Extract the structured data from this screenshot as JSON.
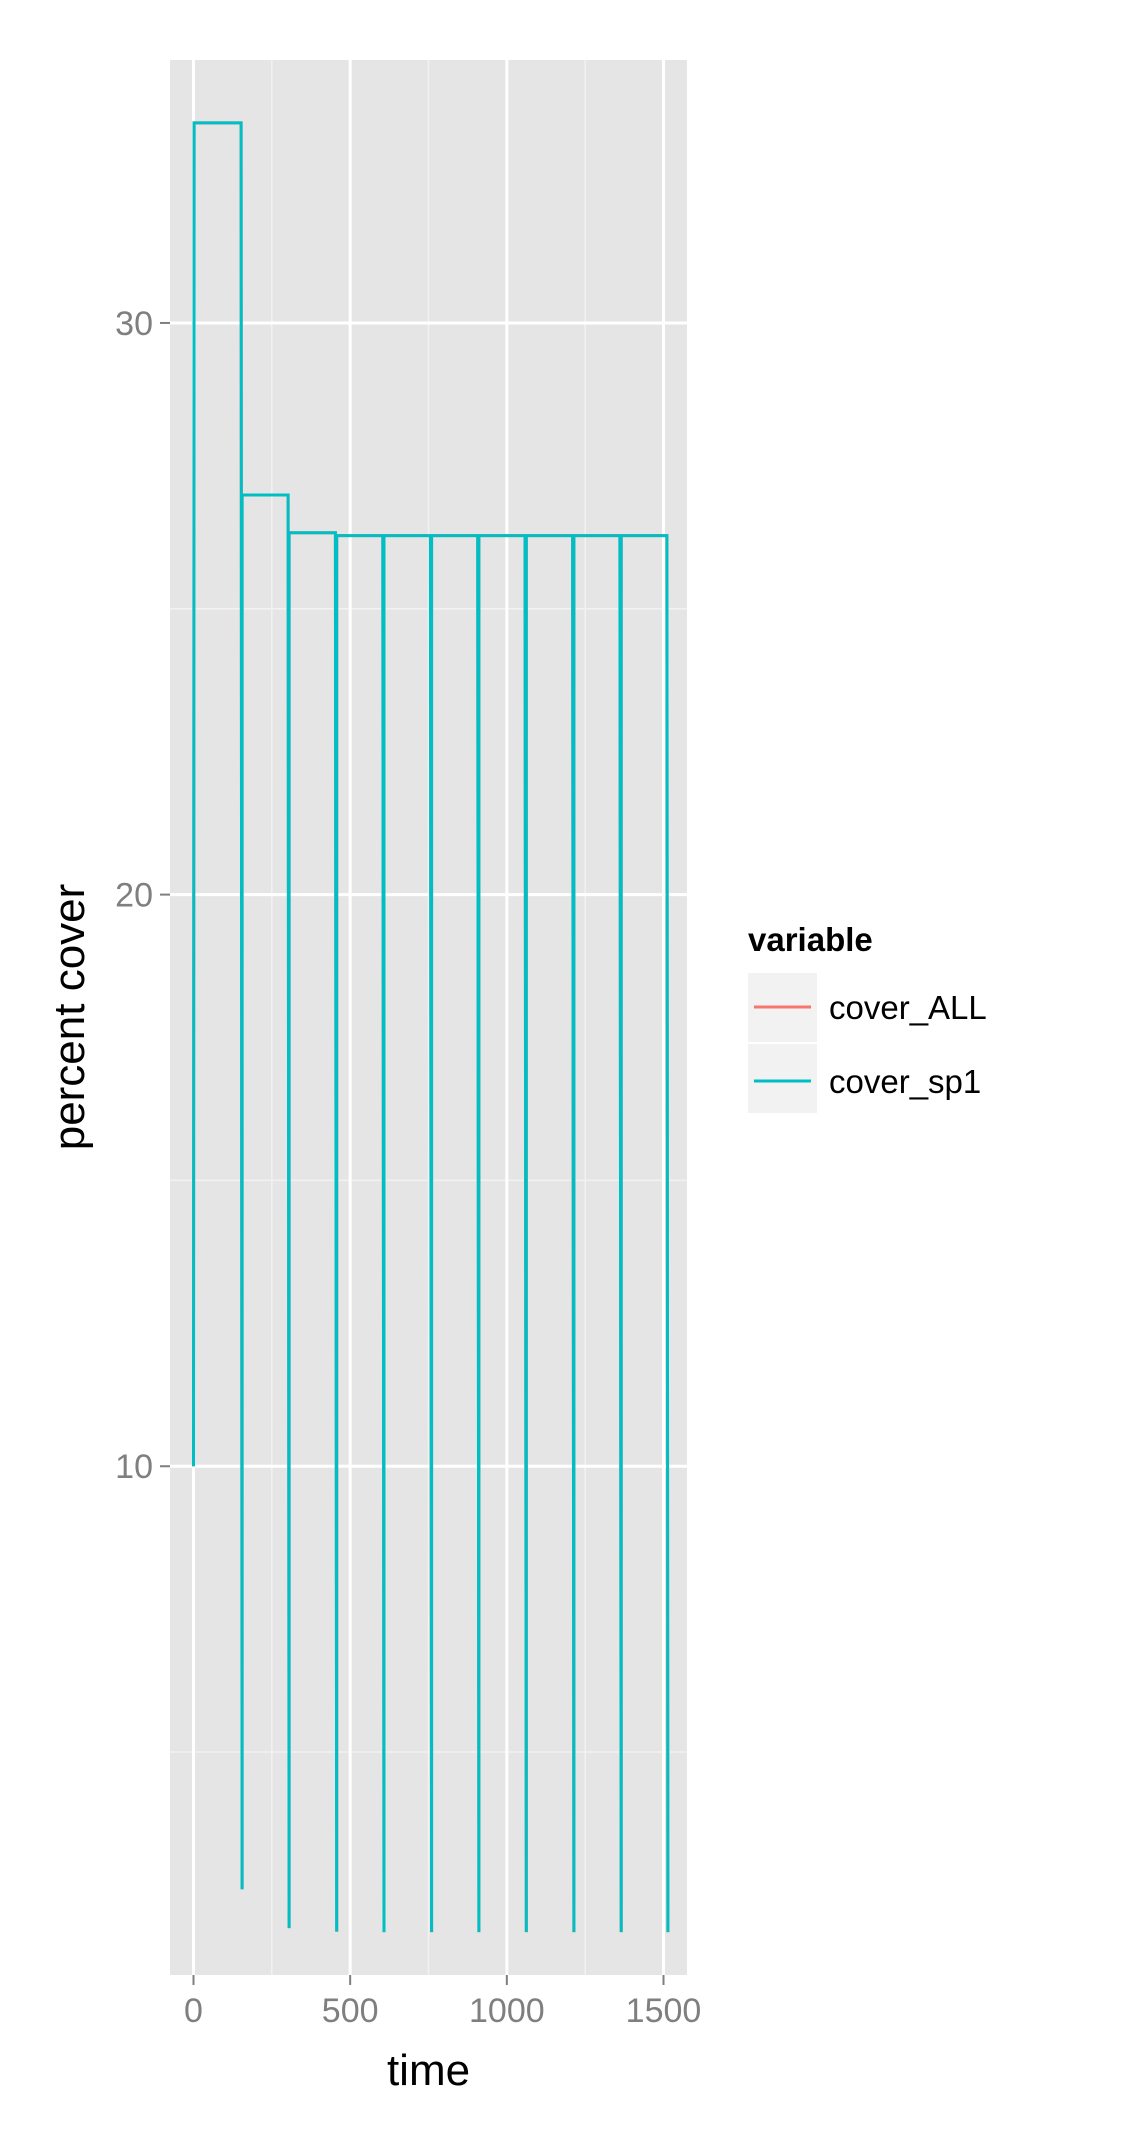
{
  "colors": {
    "panel_background": "#E5E5E5",
    "grid_major": "#FFFFFF",
    "grid_minor": "#F2F2F2",
    "tick_text": "#7F7F7F",
    "axis_title": "#000000",
    "legend_key_background": "#F2F2F2",
    "series_cover_ALL": "#F8766D",
    "series_cover_sp1": "#00BFC4"
  },
  "chart_data": {
    "type": "line",
    "title": "",
    "xlabel": "time",
    "ylabel": "percent cover",
    "xlim": [
      -75,
      1575
    ],
    "ylim": [
      1.1,
      34.6
    ],
    "x_ticks": [
      0,
      500,
      1000,
      1500
    ],
    "x_tick_labels": [
      "0",
      "500",
      "1000",
      "1500"
    ],
    "x_minor_ticks": [
      250,
      750,
      1250
    ],
    "y_ticks": [
      10,
      20,
      30
    ],
    "y_tick_labels": [
      "10",
      "20",
      "30"
    ],
    "y_minor_ticks": [
      5,
      15,
      25
    ],
    "grid": true,
    "legend": {
      "title": "variable",
      "position": "right",
      "entries": [
        "cover_ALL",
        "cover_sp1"
      ]
    },
    "series": [
      {
        "name": "cover_ALL",
        "x": [
          0,
          2,
          2,
          152,
          155,
          155,
          302,
          305,
          305,
          453,
          457,
          457,
          604,
          608,
          608,
          756,
          760,
          760,
          907,
          911,
          911,
          1058,
          1062,
          1062,
          1210,
          1214,
          1214,
          1361,
          1365,
          1365,
          1511,
          1514
        ],
        "y": [
          10,
          33.5,
          33.5,
          33.5,
          2.6,
          26.99,
          26.99,
          1.92,
          26.33,
          26.33,
          1.86,
          26.28,
          26.28,
          1.85,
          26.28,
          26.28,
          1.85,
          26.28,
          26.28,
          1.85,
          26.28,
          26.28,
          1.85,
          26.28,
          26.28,
          1.85,
          26.28,
          26.28,
          1.85,
          26.28,
          26.28,
          1.85
        ]
      },
      {
        "name": "cover_sp1",
        "x": [
          0,
          2,
          2,
          152,
          155,
          155,
          302,
          305,
          305,
          453,
          457,
          457,
          604,
          608,
          608,
          756,
          760,
          760,
          907,
          911,
          911,
          1058,
          1062,
          1062,
          1210,
          1214,
          1214,
          1361,
          1365,
          1365,
          1511,
          1514
        ],
        "y": [
          10,
          33.5,
          33.5,
          33.5,
          2.6,
          26.99,
          26.99,
          1.92,
          26.33,
          26.33,
          1.86,
          26.28,
          26.28,
          1.85,
          26.28,
          26.28,
          1.85,
          26.28,
          26.28,
          1.85,
          26.28,
          26.28,
          1.85,
          26.28,
          26.28,
          1.85,
          26.28,
          26.28,
          1.85,
          26.28,
          26.28,
          1.85
        ]
      }
    ]
  }
}
